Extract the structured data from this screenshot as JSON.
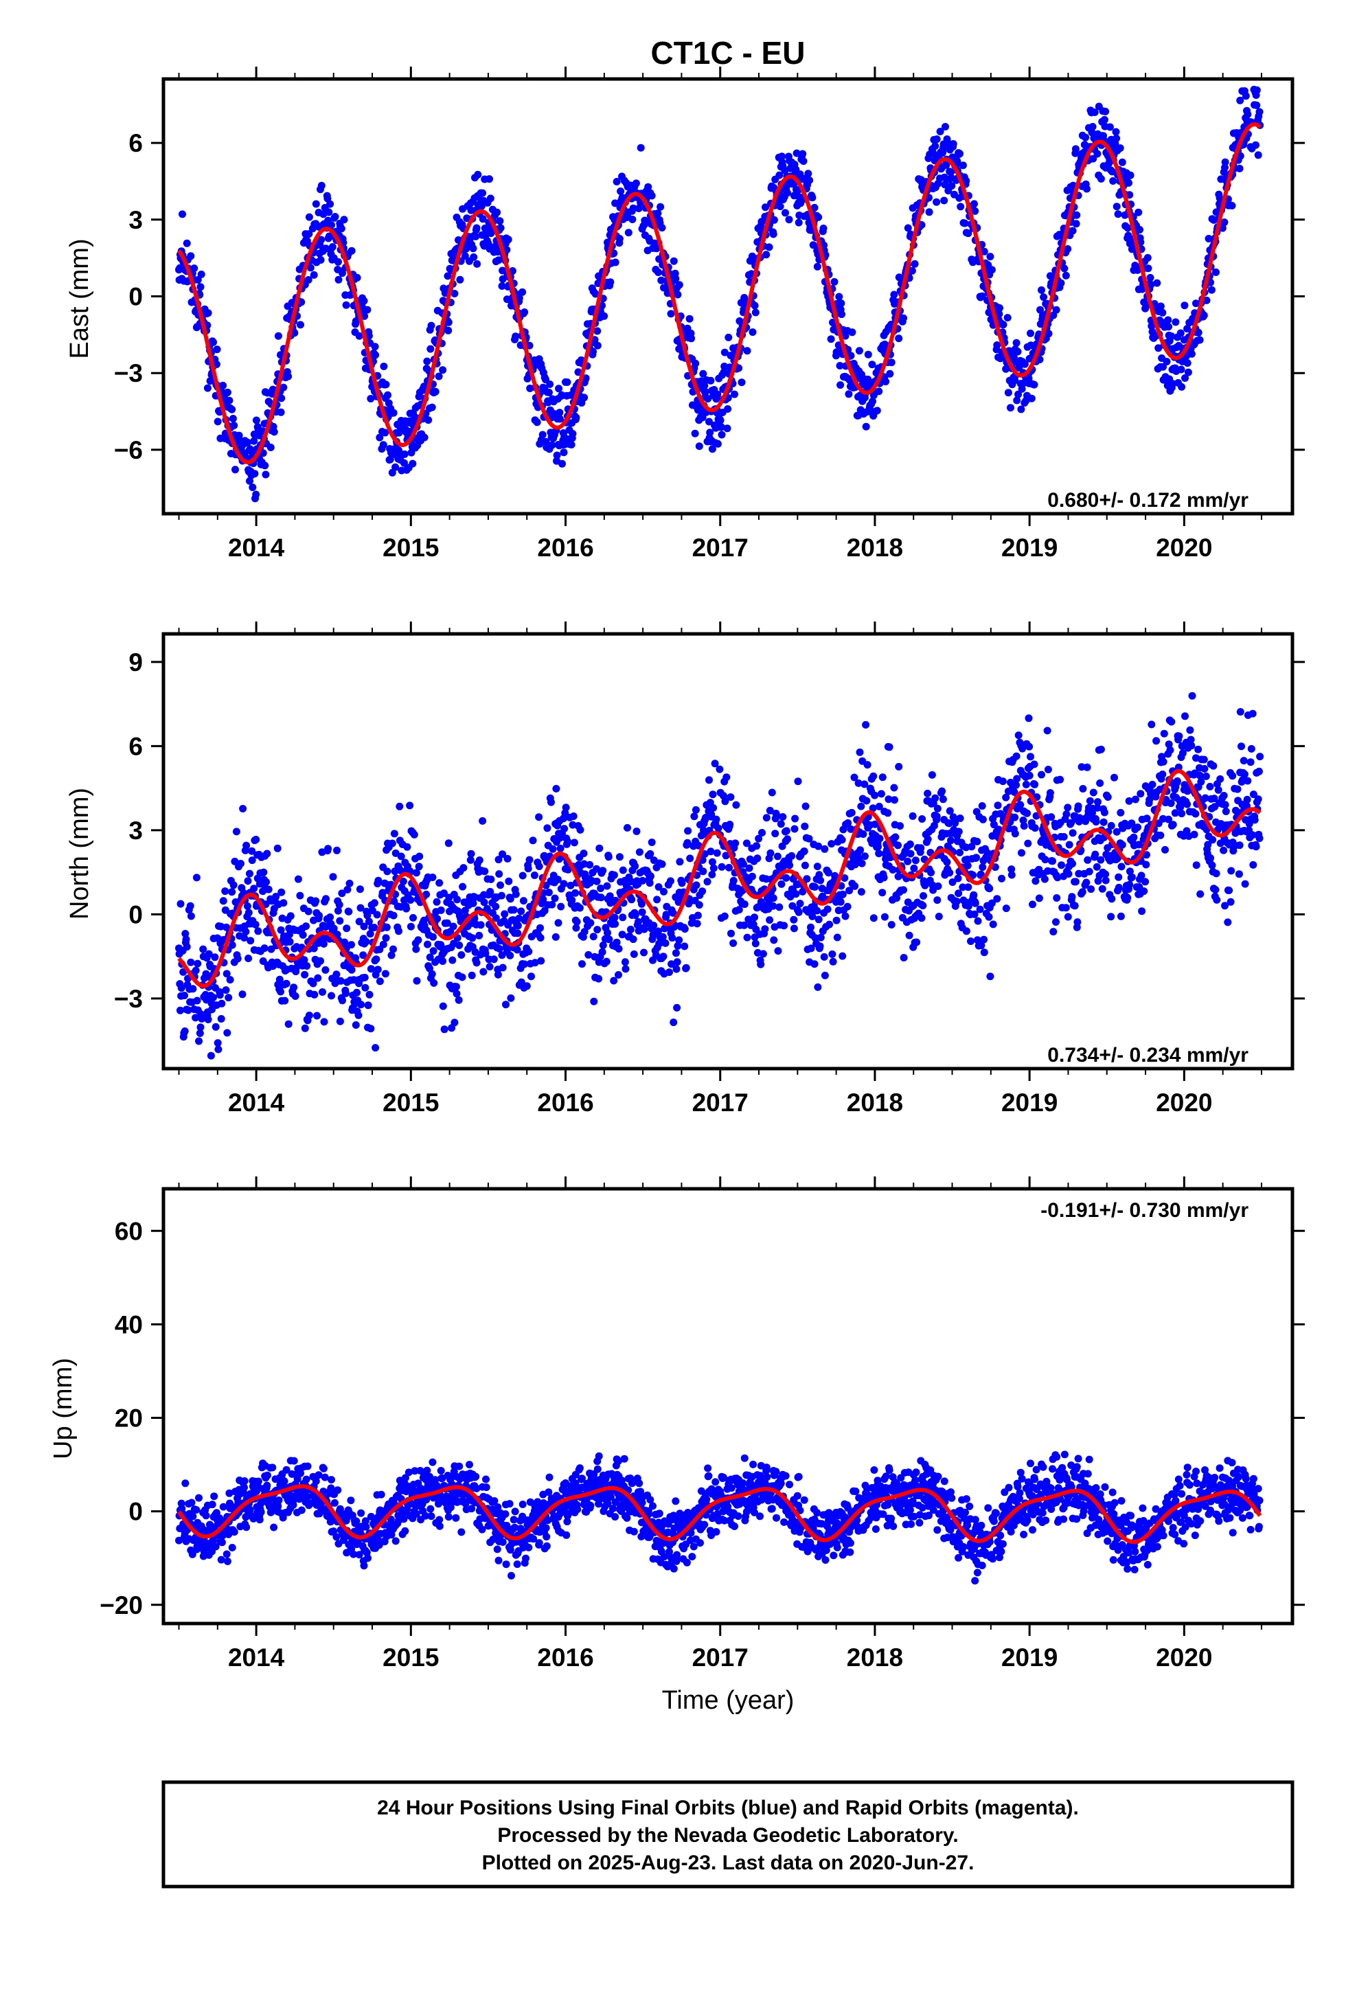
{
  "title": "CT1C - EU",
  "colors": {
    "points": "#0000ff",
    "fit": "#ff0000",
    "frame": "#000000"
  },
  "x_tick_labels": [
    "2014",
    "2015",
    "2016",
    "2017",
    "2018",
    "2019",
    "2020"
  ],
  "xlabel": "Time (year)",
  "caption": {
    "line1": "24 Hour Positions Using Final Orbits (blue) and Rapid Orbits (magenta).",
    "line2": "Processed by the Nevada Geodetic Laboratory.",
    "line3": "Plotted on 2025-Aug-23. Last data on 2020-Jun-27."
  },
  "chart_data": [
    {
      "type": "scatter",
      "ylabel": "East (mm)",
      "rate_text": "0.680+/- 0.172 mm/yr",
      "xlim": [
        2013.4,
        2020.7
      ],
      "ylim": [
        -8.5,
        8.5
      ],
      "yticks": [
        -6,
        -3,
        0,
        3,
        6
      ],
      "ytick_labels": [
        "−6",
        "−3",
        "0",
        "3",
        "6"
      ],
      "model": {
        "t0": 2013.5,
        "start": 2013.5,
        "end": 2020.49,
        "offset": -2.4,
        "rate": 0.68,
        "annual_amp": 4.4,
        "annual_phase": 2013.95,
        "semi_amp": 0.0,
        "semi_phase": 0,
        "noise": 0.75,
        "seed": 11
      },
      "fit_series": "seasonal model",
      "scatter_series": "24 hour positions"
    },
    {
      "type": "scatter",
      "ylabel": "North (mm)",
      "rate_text": "0.734+/- 0.234 mm/yr",
      "xlim": [
        2013.4,
        2020.7
      ],
      "ylim": [
        -5.5,
        10.0
      ],
      "yticks": [
        -3,
        0,
        3,
        6,
        9
      ],
      "ytick_labels": [
        "−3",
        "0",
        "3",
        "6",
        "9"
      ],
      "model": {
        "t0": 2013.5,
        "start": 2013.5,
        "end": 2020.49,
        "offset": -1.4,
        "rate": 0.734,
        "annual_amp": 0.9,
        "annual_phase": 2013.5,
        "semi_amp": 0.9,
        "semi_phase": 2013.45,
        "noise": 1.3,
        "seed": 23
      },
      "fit_series": "seasonal model",
      "scatter_series": "24 hour positions"
    },
    {
      "type": "scatter",
      "ylabel": "Up (mm)",
      "xlabel": "Time (year)",
      "rate_text": "-0.191+/- 0.730 mm/yr",
      "xlim": [
        2013.4,
        2020.7
      ],
      "ylim": [
        -24,
        69
      ],
      "yticks": [
        -20,
        0,
        20,
        40,
        60
      ],
      "ytick_labels": [
        "−20",
        "0",
        "20",
        "40",
        "60"
      ],
      "model": {
        "t0": 2013.5,
        "start": 2013.5,
        "end": 2020.49,
        "offset": 1.0,
        "rate": -0.191,
        "annual_amp": 5.0,
        "annual_phase": 2013.7,
        "semi_amp": 1.5,
        "semi_phase": 2013.9,
        "noise": 3.2,
        "seed": 37
      },
      "fit_series": "seasonal model",
      "scatter_series": "24 hour positions"
    }
  ]
}
